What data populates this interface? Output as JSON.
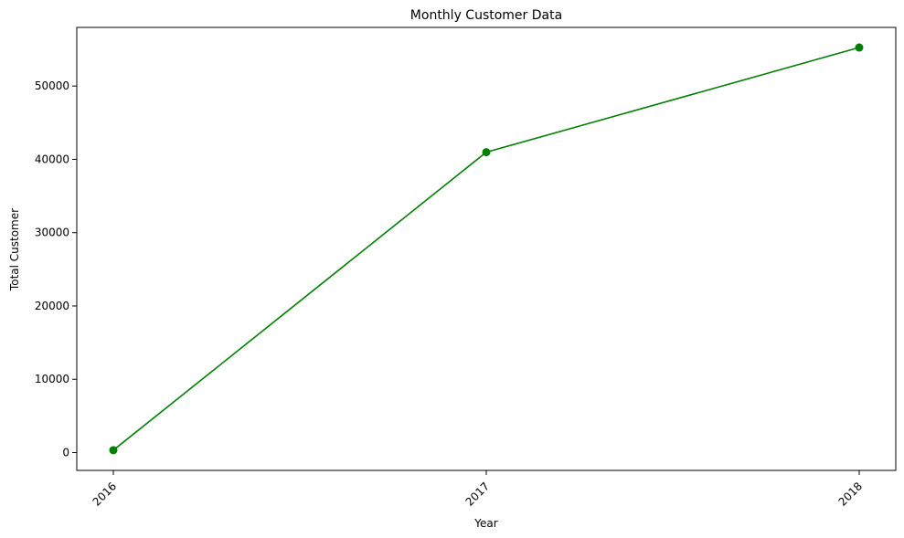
{
  "chart_data": {
    "type": "line",
    "title": "Monthly Customer Data",
    "xlabel": "Year",
    "ylabel": "Total Customer",
    "categories": [
      "2016",
      "2017",
      "2018"
    ],
    "series": [
      {
        "values": [
          329,
          40974,
          55253
        ],
        "color": "#008000",
        "marker": "circle"
      }
    ],
    "yticks": [
      0,
      10000,
      20000,
      30000,
      40000,
      50000
    ],
    "ylim": [
      -2430,
      57997
    ],
    "x_tick_rotation": 45,
    "grid": false,
    "legend": "none"
  }
}
